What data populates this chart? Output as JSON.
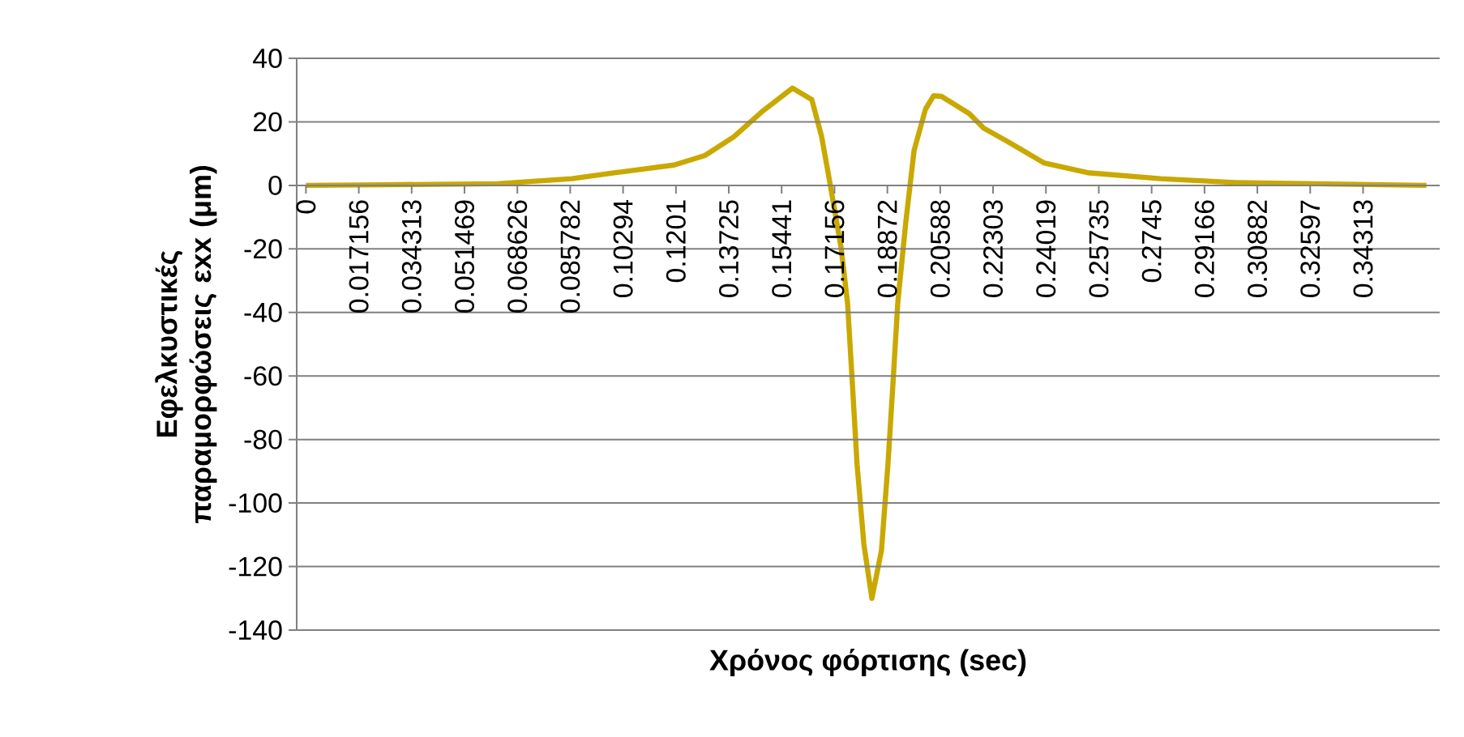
{
  "chart_data": {
    "type": "line",
    "xlabel": "Χρόνος φόρτισης (sec)",
    "ylabel": "Εφελκυστικές παραμορφώσεις εxx (μm)",
    "color": "#c9a800",
    "grid": "y",
    "x": [
      0,
      0.0263,
      0.0621,
      0.0863,
      0.1005,
      0.1195,
      0.1295,
      0.1389,
      0.1484,
      0.1579,
      0.1642,
      0.1674,
      0.17,
      0.1737,
      0.1758,
      0.1774,
      0.1789,
      0.1811,
      0.1837,
      0.1868,
      0.1889,
      0.1905,
      0.1921,
      0.1947,
      0.1974,
      0.2011,
      0.2037,
      0.2063,
      0.2153,
      0.22,
      0.2274,
      0.2395,
      0.2537,
      0.2774,
      0.3016,
      0.3495,
      0.3637
    ],
    "values": [
      0,
      0.2,
      0.5,
      2.1,
      4,
      6.4,
      9.4,
      15.3,
      23.5,
      30.6,
      27,
      15.3,
      1.2,
      -19.6,
      -37,
      -63,
      -88,
      -113,
      -130,
      -115,
      -88,
      -63,
      -37,
      -11.6,
      11,
      24,
      28.2,
      28,
      22.6,
      18,
      14,
      7.1,
      4,
      2.1,
      0.9,
      0.2,
      0
    ],
    "xlim": [
      -0.003,
      0.368
    ],
    "ylim": [
      -140,
      40
    ],
    "xticks": [
      0,
      0.017156,
      0.034313,
      0.051469,
      0.068626,
      0.085782,
      0.10294,
      0.1201,
      0.13725,
      0.15441,
      0.17156,
      0.18872,
      0.20588,
      0.22303,
      0.24019,
      0.25735,
      0.2745,
      0.29166,
      0.30882,
      0.32597,
      0.34313
    ],
    "yticks": [
      -140,
      -120,
      -100,
      -80,
      -60,
      -40,
      -20,
      0,
      20,
      40
    ]
  }
}
